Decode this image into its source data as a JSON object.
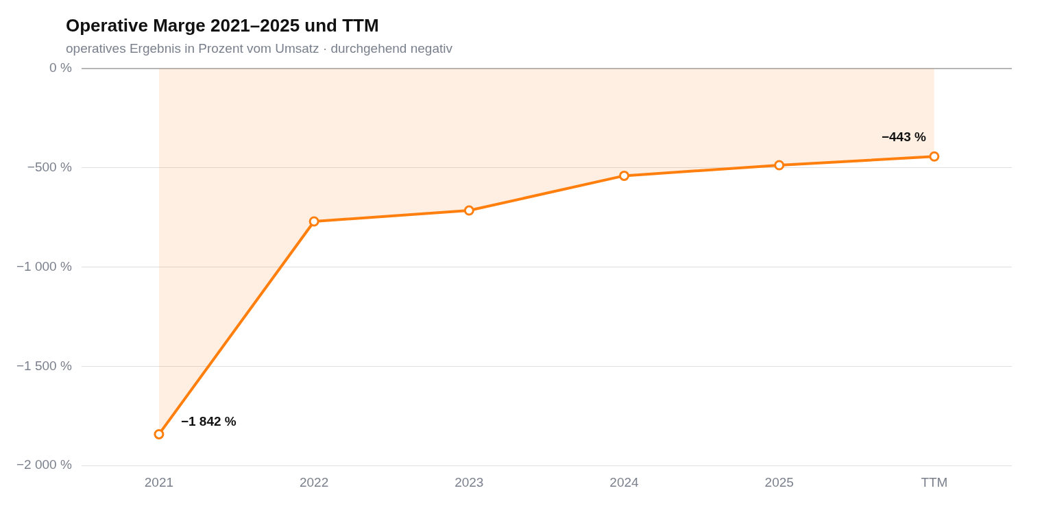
{
  "chart_data": {
    "type": "area",
    "title": "Operative Marge 2021–2025 und TTM",
    "subtitle": "operatives Ergebnis in Prozent vom Umsatz · durchgehend negativ",
    "categories": [
      "2021",
      "2022",
      "2023",
      "2024",
      "2025",
      "TTM"
    ],
    "series": [
      {
        "color": "#ff7f0e",
        "values": [
          -1842,
          -770,
          -715,
          -540,
          -487,
          -443
        ],
        "value_labels": [
          "−1 842 %",
          null,
          null,
          null,
          null,
          "−443 %"
        ]
      }
    ],
    "ylim": [
      -2000,
      0
    ],
    "yticks": [
      {
        "value": -2000,
        "label": "−2 000 %"
      },
      {
        "value": -1500,
        "label": "−1 500 %"
      },
      {
        "value": -1000,
        "label": "−1 000 %"
      },
      {
        "value": -500,
        "label": "−500 %"
      },
      {
        "value": 0,
        "label": "0 %"
      }
    ],
    "grid": "y",
    "legend": false,
    "marker": "circle",
    "line_style": "solid"
  }
}
